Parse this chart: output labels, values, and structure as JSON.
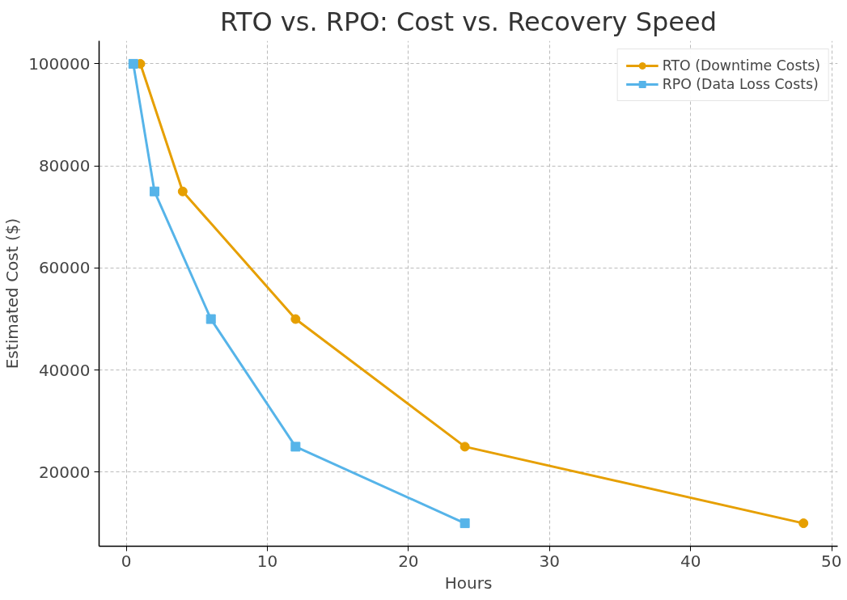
{
  "chart_data": {
    "type": "line",
    "title": "RTO vs. RPO: Cost vs. Recovery Speed",
    "xlabel": "Hours",
    "ylabel": "Estimated Cost ($)",
    "xlim": [
      -1.925,
      50.425
    ],
    "xticks": [
      0,
      10,
      20,
      30,
      40,
      50
    ],
    "ylim": [
      5500,
      104500
    ],
    "yticks": [
      20000,
      40000,
      60000,
      80000,
      100000
    ],
    "grid": true,
    "legend": "top right",
    "line_style": "solid",
    "series": [
      {
        "name": "RTO (Downtime Costs)",
        "color": "#e69f00",
        "marker": "circle",
        "x": [
          1,
          4,
          12,
          24,
          48
        ],
        "values": [
          100000,
          75000,
          50000,
          25000,
          10000
        ]
      },
      {
        "name": "RPO (Data Loss Costs)",
        "color": "#56b4e9",
        "marker": "square",
        "x": [
          0.5,
          2,
          6,
          12,
          24
        ],
        "values": [
          100000,
          75000,
          50000,
          25000,
          10000
        ]
      }
    ]
  }
}
